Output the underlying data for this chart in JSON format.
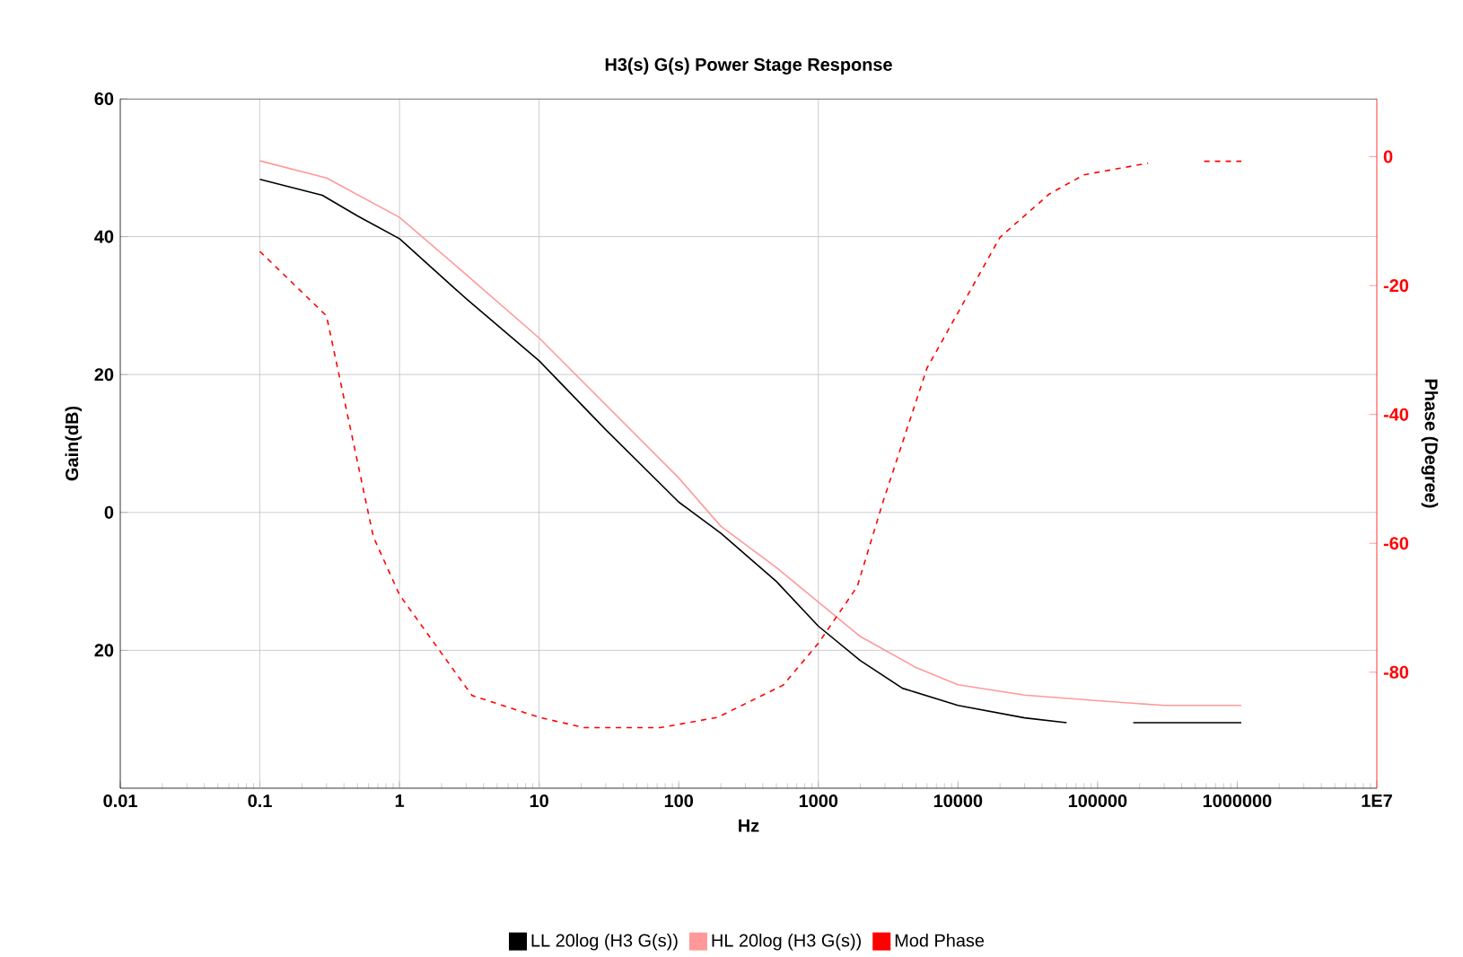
{
  "chart_data": {
    "type": "line",
    "title": "H3(s) G(s) Power Stage Response",
    "xlabel": "Hz",
    "ylabel": "Gain(dB)",
    "y2label": "Phase (Degree)",
    "log": "x",
    "grid": "y",
    "legend": "bottom",
    "xlim": [
      0.01,
      10000000
    ],
    "xticks": [
      {
        "value": 0.01,
        "label": "0.01"
      },
      {
        "value": 0.1,
        "label": "0.1"
      },
      {
        "value": 1,
        "label": "1"
      },
      {
        "value": 10,
        "label": "10"
      },
      {
        "value": 100,
        "label": "100"
      },
      {
        "value": 1000,
        "label": "1000"
      },
      {
        "value": 10000,
        "label": "10000"
      },
      {
        "value": 100000,
        "label": "100000"
      },
      {
        "value": 1000000,
        "label": "1000000"
      },
      {
        "value": 10000000,
        "label": "1E7"
      }
    ],
    "ylim": [
      -40,
      60
    ],
    "yticks": [
      {
        "value": -20,
        "label": "20"
      },
      0,
      20,
      40,
      60
    ],
    "y2lim": [
      -98,
      9
    ],
    "y2ticks": [
      -80,
      -60,
      -40,
      -20,
      0
    ],
    "ref_lines": [
      {
        "axis": "x",
        "value": 0.1,
        "color": "#c0c0c0"
      },
      {
        "axis": "x",
        "value": 1,
        "color": "#c0c0c0"
      },
      {
        "axis": "x",
        "value": 10,
        "color": "#c0c0c0"
      },
      {
        "axis": "x",
        "value": 1000,
        "color": "#c0c0c0"
      }
    ],
    "series": [
      {
        "name": "LL 20log (H3 G(s))",
        "color": "#000000",
        "x": [
          0.1,
          0.28,
          0.5,
          1,
          3,
          10,
          30,
          100,
          200,
          500,
          1000,
          2000,
          4000,
          10000,
          30000,
          60000,
          100000,
          180000,
          1070000
        ],
        "values": [
          48.3,
          46,
          43,
          39.7,
          31,
          22,
          12,
          1.5,
          -3,
          -10,
          -16.5,
          -21.5,
          -25.5,
          -28,
          -29.8,
          -30.5,
          null,
          -30.5,
          -30.5
        ]
      },
      {
        "name": "HL 20log (H3 G(s))",
        "color": "#ff9999",
        "x": [
          0.1,
          0.3,
          1,
          3,
          10,
          100,
          200,
          500,
          1000,
          2000,
          5000,
          10000,
          30000,
          100000,
          300000,
          1070000
        ],
        "values": [
          51,
          48.5,
          42.8,
          34.5,
          25.3,
          5,
          -2,
          -8,
          -13,
          -18,
          -22.5,
          -25,
          -26.5,
          -27.3,
          -28,
          -28
        ]
      },
      {
        "name": "Mod Phase",
        "color": "#ff0000",
        "axis": "y2",
        "line_style": "dashed",
        "x": [
          0.1,
          0.3,
          0.65,
          1,
          3.3,
          10,
          21,
          74,
          190,
          560,
          1000,
          1900,
          2900,
          6000,
          20000,
          45000,
          80000,
          230000,
          400000,
          580000,
          1070000
        ],
        "values": [
          -14.7,
          -24.7,
          -59,
          -68,
          -83.6,
          -87,
          -88.6,
          -88.6,
          -87,
          -82,
          -75.5,
          -66.7,
          -53.6,
          -32.8,
          -12.5,
          -5.8,
          -2.8,
          -1,
          null,
          -0.7,
          -0.7
        ]
      }
    ]
  }
}
